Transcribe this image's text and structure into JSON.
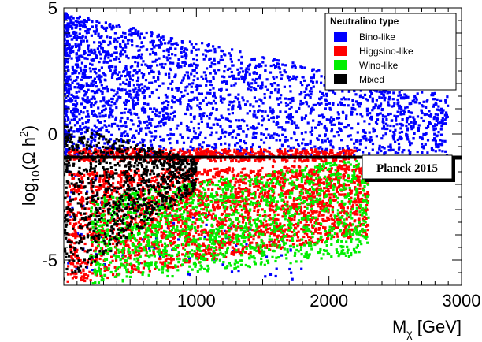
{
  "chart_data": {
    "type": "scatter",
    "title": "",
    "xlabel": "M_χ [GeV]",
    "xlabel_main": "M",
    "xlabel_sub": "χ",
    "xlabel_unit": " [GeV]",
    "ylabel_base": "log",
    "ylabel_sub": "10",
    "ylabel_paren_open": "(Ω h",
    "ylabel_sup": "2",
    "ylabel_paren_close": ")",
    "xlim": [
      0,
      3000
    ],
    "ylim": [
      -6,
      5
    ],
    "xticks": [
      1000,
      2000,
      3000
    ],
    "xtick_labels": [
      "1000",
      "2000",
      "3000"
    ],
    "yticks": [
      -5,
      0,
      5
    ],
    "ytick_labels": [
      "-5",
      "0",
      "5"
    ],
    "grid": false,
    "legend": {
      "title": "Neutralino type",
      "placement": "top-right",
      "entries": [
        {
          "label": "Bino-like",
          "color": "#0000ff"
        },
        {
          "label": "Higgsino-like",
          "color": "#ff0000"
        },
        {
          "label": "Wino-like",
          "color": "#00ee00"
        },
        {
          "label": "Mixed",
          "color": "#000000"
        }
      ]
    },
    "series": [
      {
        "name": "Bino-like",
        "color": "#0000ff",
        "regions": [
          {
            "x": [
              0,
              2900
            ],
            "y_top": [
              4.8,
              1.5
            ],
            "y_bottom": [
              -0.85,
              -0.85
            ],
            "density": 2600
          },
          {
            "x": [
              30,
              1800
            ],
            "y_top": [
              -1.2,
              -4.5
            ],
            "y_bottom": [
              -5.5,
              -5.8
            ],
            "density": 120
          }
        ]
      },
      {
        "name": "Higgsino-like",
        "color": "#ff0000",
        "regions": [
          {
            "x": [
              30,
              2200
            ],
            "y_top": [
              -0.6,
              -0.6
            ],
            "y_bottom": [
              -1.1,
              -1.1
            ],
            "density": 600
          },
          {
            "x": [
              30,
              2300
            ],
            "y_top": [
              -1.5,
              -1.2
            ],
            "y_bottom": [
              -6.0,
              -4.0
            ],
            "density": 2600
          }
        ]
      },
      {
        "name": "Wino-like",
        "color": "#00ee00",
        "regions": [
          {
            "x": [
              200,
              2300
            ],
            "y_top": [
              -2.5,
              -0.9
            ],
            "y_bottom": [
              -6.0,
              -4.8
            ],
            "density": 1500
          }
        ]
      },
      {
        "name": "Mixed",
        "color": "#000000",
        "regions": [
          {
            "x": [
              0,
              1000
            ],
            "y_top": [
              0.4,
              -1.0
            ],
            "y_bottom": [
              -6.0,
              -2.2
            ],
            "density": 900
          }
        ]
      }
    ],
    "reference_line": {
      "label": "Planck 2015",
      "y": -0.92,
      "color": "#000000"
    }
  }
}
